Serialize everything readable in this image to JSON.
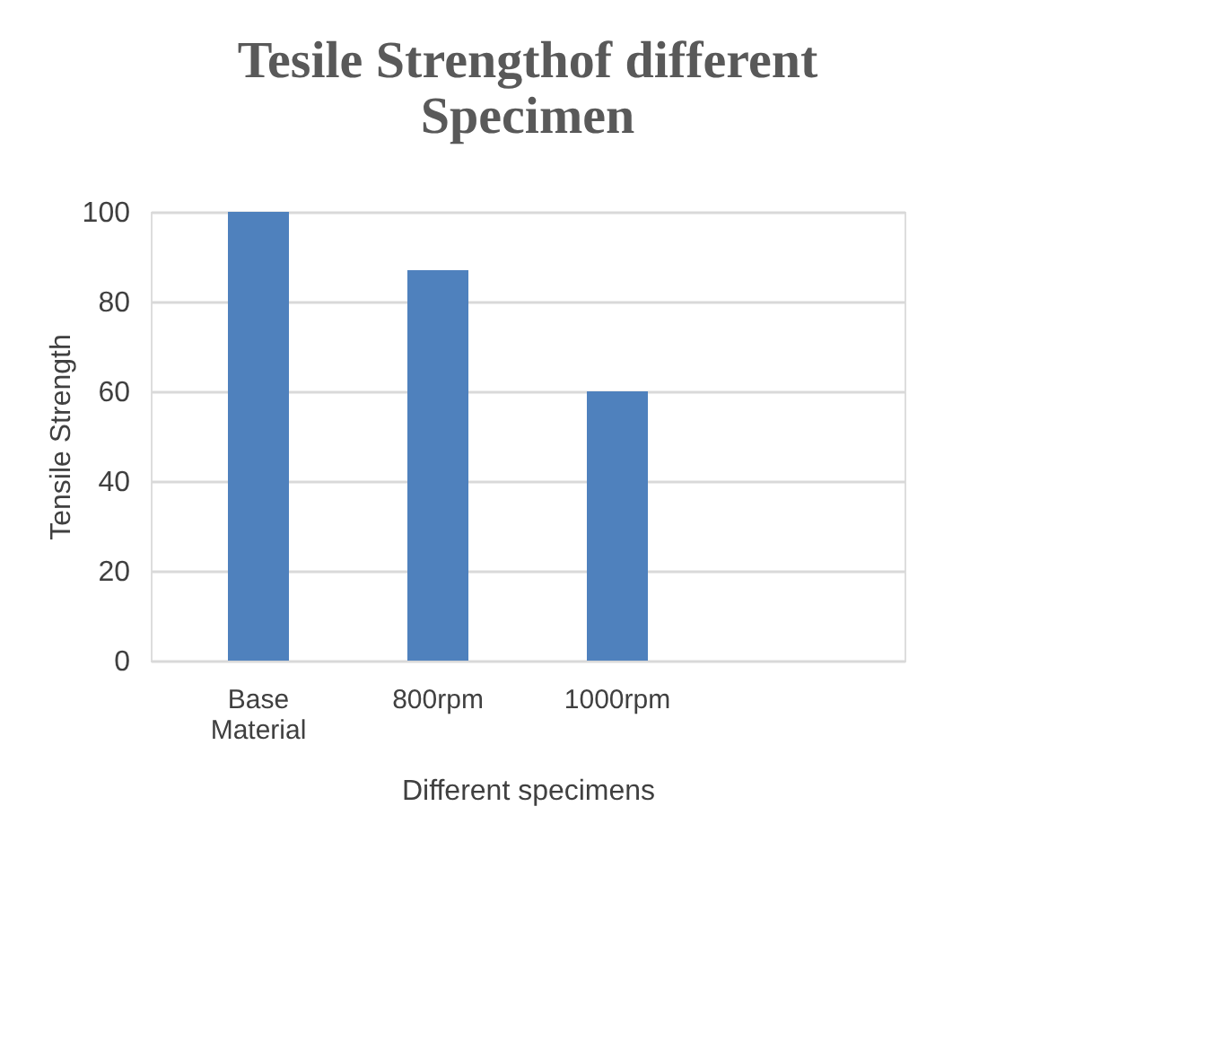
{
  "chart_data": {
    "type": "bar",
    "title": "Tesile Strengthof different Specimen",
    "xlabel": "Different  specimens",
    "ylabel": "Tensile Strength",
    "categories": [
      "Base Material",
      "800rpm",
      "1000rpm",
      null
    ],
    "values": [
      100,
      87,
      60,
      null
    ],
    "color": "#4f81bd",
    "ylim": [
      0,
      100
    ],
    "yticks": [
      0,
      20,
      40,
      60,
      80,
      100
    ],
    "grid": "y"
  }
}
